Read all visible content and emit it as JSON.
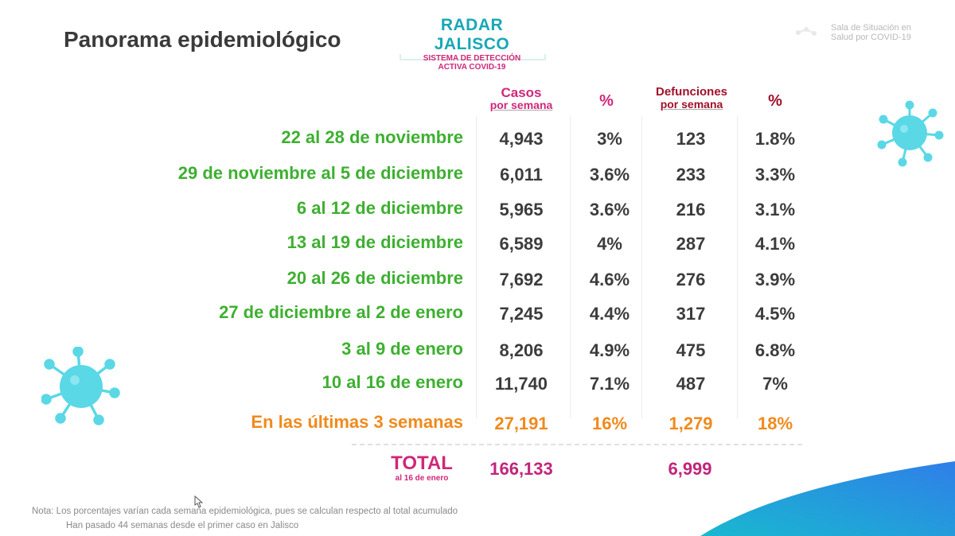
{
  "title": "Panorama epidemiológico",
  "logo": {
    "main": "RADAR JALISCO",
    "sub1": "SISTEMA DE DETECCIÓN",
    "sub2a": "ACTIVA ",
    "sub2b": "COVID-19"
  },
  "sala": {
    "line1": "Sala de Situación en",
    "line2": "Salud por COVID-19"
  },
  "headers": {
    "cases_l1": "Casos",
    "cases_l2": "por semana",
    "pct1": "%",
    "deaths_l1": "Defunciones",
    "deaths_l2": "por semana",
    "pct2": "%"
  },
  "rows": [
    {
      "label": "22 al 28 de noviembre",
      "cases": "4,943",
      "cases_pct": "3%",
      "deaths": "123",
      "deaths_pct": "1.8%"
    },
    {
      "label": "29 de noviembre al 5 de diciembre",
      "cases": "6,011",
      "cases_pct": "3.6%",
      "deaths": "233",
      "deaths_pct": "3.3%"
    },
    {
      "label": "6 al 12 de diciembre",
      "cases": "5,965",
      "cases_pct": "3.6%",
      "deaths": "216",
      "deaths_pct": "3.1%"
    },
    {
      "label": "13 al 19 de diciembre",
      "cases": "6,589",
      "cases_pct": "4%",
      "deaths": "287",
      "deaths_pct": "4.1%"
    },
    {
      "label": "20 al 26 de diciembre",
      "cases": "7,692",
      "cases_pct": "4.6%",
      "deaths": "276",
      "deaths_pct": "3.9%"
    },
    {
      "label": "27 de diciembre al 2 de enero",
      "cases": "7,245",
      "cases_pct": "4.4%",
      "deaths": "317",
      "deaths_pct": "4.5%"
    },
    {
      "label": "3 al 9 de enero",
      "cases": "8,206",
      "cases_pct": "4.9%",
      "deaths": "475",
      "deaths_pct": "6.8%"
    },
    {
      "label": "10 al 16 de enero",
      "cases": "11,740",
      "cases_pct": "7.1%",
      "deaths": "487",
      "deaths_pct": "7%"
    }
  ],
  "summary": {
    "label": "En las últimas 3 semanas",
    "cases": "27,191",
    "cases_pct": "16%",
    "deaths": "1,279",
    "deaths_pct": "18%"
  },
  "total": {
    "label": "TOTAL",
    "sublabel": "al 16 de enero",
    "cases": "166,133",
    "deaths": "6,999"
  },
  "note": {
    "line1": "Nota: Los porcentajes varían cada semana epidemiológica, pues se calculan respecto al total acumulado",
    "line2": "Han pasado 44 semanas desde el primer caso en Jalisco"
  },
  "colors": {
    "row_label": "#3db030",
    "cases_header": "#d0277a",
    "deaths_header": "#a0102a",
    "summary": "#f08a1c",
    "total": "#d0277a",
    "virus": "#5ad8e6",
    "wave": "#1f8fe8"
  },
  "icons": [
    "virus-icon",
    "virus-icon",
    "cursor-icon"
  ]
}
